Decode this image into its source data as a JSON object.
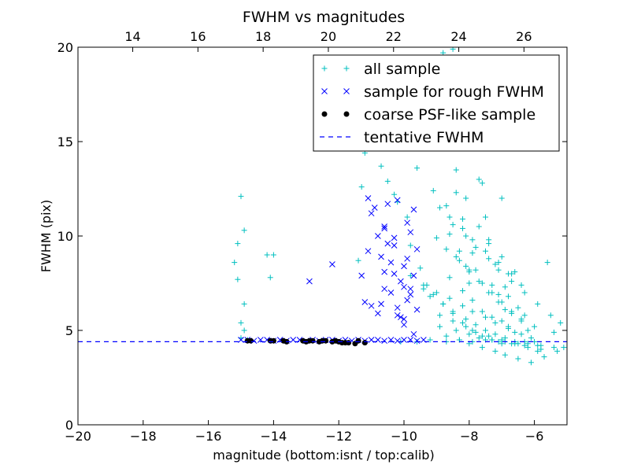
{
  "chart_data": {
    "type": "scatter",
    "title": "FWHM vs magnitudes",
    "xlabel": "magnitude (bottom:isnt / top:calib)",
    "ylabel": "FWHM (pix)",
    "xlim": [
      -20,
      -5
    ],
    "ylim": [
      0,
      20
    ],
    "x_ticks": [
      -20,
      -18,
      -16,
      -14,
      -12,
      -10,
      -8,
      -6
    ],
    "x_tick_labels": [
      "−20",
      "−18",
      "−16",
      "−14",
      "−12",
      "−10",
      "−8",
      "−6"
    ],
    "y_ticks": [
      0,
      5,
      10,
      15,
      20
    ],
    "y_tick_labels": [
      "0",
      "5",
      "10",
      "15",
      "20"
    ],
    "top_axis": {
      "xlim": [
        12.32,
        27.32
      ],
      "ticks": [
        14,
        16,
        18,
        20,
        22,
        24,
        26
      ],
      "tick_labels": [
        "14",
        "16",
        "18",
        "20",
        "22",
        "24",
        "26"
      ]
    },
    "grid": false,
    "legend_placement": "top-right",
    "series": [
      {
        "name": "all sample",
        "marker": "+",
        "color": "#00bfbf",
        "x": [
          -15.2,
          -15.1,
          -15.0,
          -15.1,
          -14.9,
          -14.9,
          -15.0,
          -14.9,
          -14.2,
          -14.0,
          -14.1,
          -15.0,
          -14.8,
          -11.4,
          -11.3,
          -11.2,
          -10.7,
          -10.5,
          -10.3,
          -10.2,
          -9.9,
          -9.8,
          -9.6,
          -9.5,
          -9.4,
          -9.3,
          -9.2,
          -9.1,
          -9.0,
          -8.9,
          -8.8,
          -8.7,
          -8.6,
          -8.5,
          -8.4,
          -8.3,
          -8.2,
          -8.1,
          -8.0,
          -7.9,
          -7.8,
          -7.7,
          -7.6,
          -7.5,
          -7.4,
          -7.3,
          -7.2,
          -7.1,
          -7.0,
          -6.9,
          -6.8,
          -6.7,
          -6.6,
          -6.5,
          -6.4,
          -6.3,
          -6.2,
          -6.1,
          -6.0,
          -5.9,
          -5.8,
          -5.6,
          -5.4,
          -5.2,
          -5.1,
          -8.6,
          -8.2,
          -7.9,
          -7.6,
          -7.3,
          -7.0,
          -6.8,
          -6.6,
          -8.4,
          -8.0,
          -7.7,
          -7.4,
          -7.1,
          -6.9,
          -8.8,
          -8.5,
          -8.1,
          -7.8,
          -7.5,
          -7.2,
          -6.9,
          -6.5,
          -6.2,
          -5.9,
          -9.0,
          -8.7,
          -8.3,
          -8.0,
          -7.6,
          -7.3,
          -7.0,
          -6.7,
          -6.4,
          -6.0,
          -8.9,
          -8.4,
          -8.0,
          -7.7,
          -7.3,
          -6.9,
          -6.6,
          -6.3,
          -8.5,
          -8.1,
          -7.8,
          -7.4,
          -7.1,
          -6.7,
          -6.3,
          -5.9,
          -5.5,
          -9.3,
          -9.0,
          -8.6,
          -8.2,
          -7.9,
          -7.5,
          -7.2,
          -6.8,
          -6.4,
          -8.7,
          -8.3,
          -8.0,
          -7.6,
          -7.2,
          -6.9,
          -6.5,
          -6.1,
          -5.7,
          -5.3,
          -8.9,
          -8.6,
          -8.2,
          -7.9,
          -7.5,
          -7.1,
          -6.8,
          -6.4,
          -9.8,
          -9.4,
          -9.1,
          -8.8,
          -8.5,
          -8.2,
          -7.9,
          -7.6,
          -7.3,
          -7.0,
          -8.4,
          -8.1,
          -7.7,
          -7.4,
          -7.0,
          -6.7,
          -8.9,
          -8.5,
          -8.1,
          -7.8,
          -7.4,
          -7.0,
          -6.6,
          -6.2,
          -5.8,
          -5.4,
          -10.1,
          -9.6,
          -9.2,
          -8.7,
          -8.3,
          -7.9,
          -7.5,
          -7.1,
          -6.7,
          -6.3
        ],
        "y": [
          8.6,
          9.6,
          12.1,
          7.7,
          10.3,
          6.4,
          5.4,
          5.0,
          9.0,
          9.0,
          7.8,
          4.6,
          4.5,
          8.7,
          12.6,
          14.4,
          13.7,
          12.9,
          12.2,
          11.8,
          11.0,
          9.5,
          13.6,
          8.3,
          7.2,
          17.5,
          6.8,
          12.4,
          15.1,
          18.6,
          19.7,
          11.6,
          10.1,
          19.9,
          12.3,
          9.2,
          10.9,
          8.4,
          7.5,
          9.1,
          8.2,
          13.0,
          12.8,
          11.0,
          9.8,
          7.4,
          8.5,
          6.9,
          12.0,
          7.3,
          6.8,
          5.9,
          8.1,
          6.2,
          5.5,
          5.8,
          5.0,
          4.6,
          4.4,
          4.2,
          4.0,
          8.6,
          4.9,
          5.4,
          4.1,
          7.8,
          7.1,
          6.6,
          6.0,
          5.7,
          5.5,
          5.2,
          4.9,
          8.9,
          8.2,
          7.6,
          7.0,
          6.5,
          6.1,
          6.4,
          6.0,
          5.6,
          5.3,
          5.0,
          4.8,
          4.6,
          4.3,
          4.1,
          3.9,
          9.9,
          9.3,
          8.7,
          8.1,
          7.5,
          7.0,
          6.5,
          6.0,
          5.6,
          5.2,
          5.2,
          5.0,
          4.8,
          4.6,
          4.5,
          4.4,
          4.3,
          4.2,
          10.6,
          10.0,
          9.4,
          8.8,
          8.2,
          7.6,
          7.0,
          6.4,
          5.8,
          7.4,
          7.0,
          6.7,
          6.3,
          6.0,
          5.7,
          5.4,
          5.1,
          4.8,
          4.7,
          4.5,
          4.3,
          4.1,
          3.9,
          3.7,
          3.5,
          3.3,
          3.6,
          3.9,
          11.5,
          11.0,
          10.4,
          9.8,
          9.2,
          8.6,
          8.0,
          7.4,
          7.9,
          7.4,
          6.9,
          6.4,
          5.9,
          5.4,
          5.0,
          4.7,
          4.5,
          4.3,
          13.5,
          12.0,
          10.5,
          9.6,
          8.9,
          8.0,
          5.8,
          5.5,
          5.2,
          4.9,
          4.7,
          4.5,
          4.4,
          4.3,
          4.2,
          4.1,
          4.4,
          4.4,
          4.5,
          4.4,
          4.5,
          4.4,
          4.5,
          4.4,
          4.3,
          4.4
        ]
      },
      {
        "name": "sample for rough FWHM",
        "marker": "x",
        "color": "#0000ff",
        "x": [
          -15.0,
          -14.8,
          -14.6,
          -14.4,
          -14.2,
          -14.0,
          -13.8,
          -13.6,
          -13.4,
          -13.2,
          -13.0,
          -12.8,
          -12.6,
          -12.4,
          -12.2,
          -12.0,
          -11.8,
          -11.6,
          -11.4,
          -11.2,
          -11.0,
          -10.8,
          -10.6,
          -10.4,
          -10.2,
          -10.0,
          -9.8,
          -9.6,
          -9.4,
          -12.9,
          -12.2,
          -11.3,
          -11.1,
          -11.0,
          -11.2,
          -11.0,
          -10.8,
          -10.7,
          -10.6,
          -10.5,
          -10.7,
          -10.6,
          -10.4,
          -10.3,
          -10.2,
          -10.1,
          -10.0,
          -9.9,
          -9.8,
          -9.7,
          -9.6,
          -10.2,
          -10.0,
          -9.8,
          -9.7,
          -10.6,
          -10.4,
          -10.2,
          -10.0,
          -9.9,
          -10.8,
          -10.5,
          -10.3,
          -10.1,
          -9.9,
          -9.7,
          -11.1,
          -10.9,
          -10.6,
          -10.3,
          -10.0,
          -9.8,
          -9.6
        ],
        "y": [
          4.5,
          4.5,
          4.45,
          4.5,
          4.5,
          4.45,
          4.5,
          4.45,
          4.5,
          4.5,
          4.45,
          4.5,
          4.45,
          4.5,
          4.5,
          4.45,
          4.5,
          4.45,
          4.5,
          4.45,
          4.5,
          4.5,
          4.45,
          4.5,
          4.45,
          4.5,
          4.5,
          4.45,
          4.5,
          7.6,
          8.5,
          7.9,
          9.2,
          11.2,
          6.5,
          6.3,
          5.9,
          8.9,
          10.5,
          11.7,
          6.4,
          7.2,
          8.6,
          9.9,
          11.9,
          5.7,
          7.3,
          8.8,
          10.2,
          11.4,
          9.3,
          5.8,
          5.6,
          6.9,
          4.8,
          8.1,
          7.0,
          6.2,
          5.3,
          6.6,
          10.0,
          9.6,
          8.0,
          7.6,
          10.7,
          7.9,
          12.0,
          11.5,
          10.4,
          9.5,
          8.4,
          7.2,
          6.1
        ]
      },
      {
        "name": "coarse PSF-like sample",
        "marker": "o",
        "color": "#000000",
        "x": [
          -14.8,
          -14.7,
          -14.1,
          -14.0,
          -13.7,
          -13.6,
          -13.1,
          -13.0,
          -12.9,
          -12.8,
          -12.6,
          -12.5,
          -12.4,
          -12.2,
          -12.1,
          -12.0,
          -11.9,
          -11.8,
          -11.7,
          -11.5,
          -11.4,
          -11.2
        ],
        "y": [
          4.45,
          4.45,
          4.45,
          4.45,
          4.45,
          4.4,
          4.45,
          4.4,
          4.45,
          4.45,
          4.4,
          4.45,
          4.45,
          4.4,
          4.45,
          4.4,
          4.35,
          4.35,
          4.35,
          4.3,
          4.45,
          4.35
        ]
      },
      {
        "name": "tentative FWHM",
        "marker": "dashed-line",
        "color": "#0000ff",
        "y_value": 4.4
      }
    ]
  }
}
